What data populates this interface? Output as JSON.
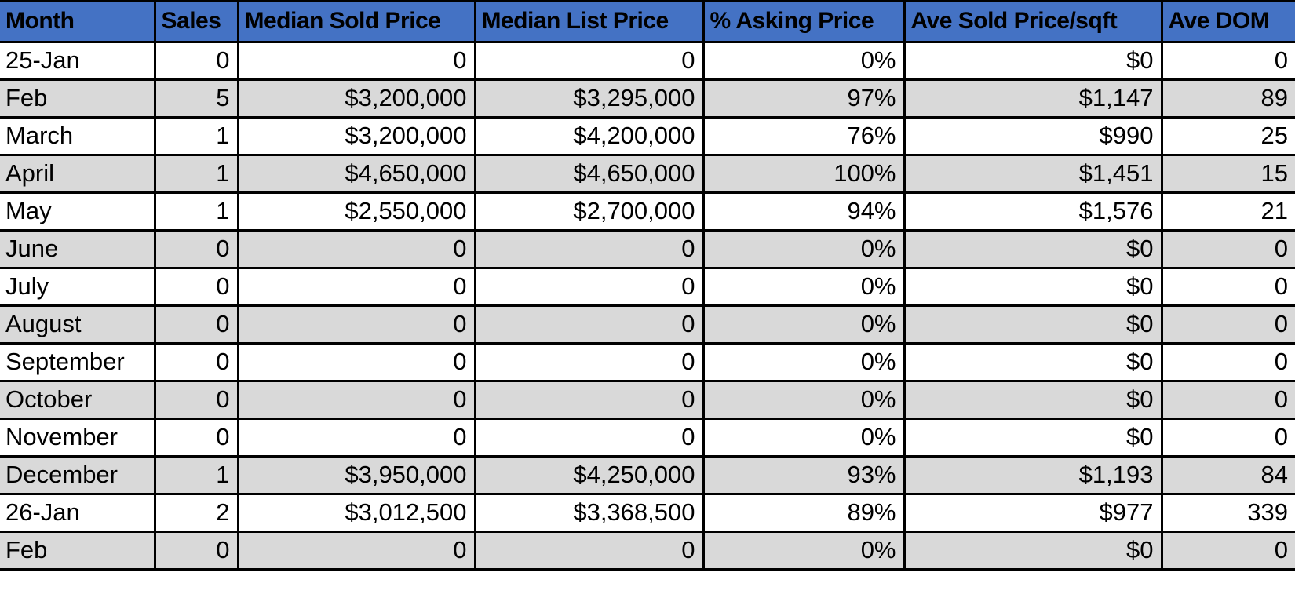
{
  "colors": {
    "header_bg": "#4472C4",
    "header_text": "#000000",
    "row_bg": "#FFFFFF",
    "row_alt_bg": "#D9D9D9",
    "border": "#000000",
    "cell_text": "#000000"
  },
  "table": {
    "headers": [
      "Month",
      "Sales",
      "Median Sold Price",
      "Median List Price",
      "% Asking Price",
      "Ave Sold Price/sqft",
      "Ave DOM"
    ],
    "rows": [
      {
        "cells": [
          "25-Jan",
          "0",
          "0",
          "0",
          "0%",
          "$0",
          "0"
        ]
      },
      {
        "cells": [
          "Feb",
          "5",
          "$3,200,000",
          "$3,295,000",
          "97%",
          "$1,147",
          "89"
        ]
      },
      {
        "cells": [
          "March",
          "1",
          "$3,200,000",
          "$4,200,000",
          "76%",
          "$990",
          "25"
        ]
      },
      {
        "cells": [
          "April",
          "1",
          "$4,650,000",
          "$4,650,000",
          "100%",
          "$1,451",
          "15"
        ]
      },
      {
        "cells": [
          "May",
          "1",
          "$2,550,000",
          "$2,700,000",
          "94%",
          "$1,576",
          "21"
        ]
      },
      {
        "cells": [
          "June",
          "0",
          "0",
          "0",
          "0%",
          "$0",
          "0"
        ]
      },
      {
        "cells": [
          "July",
          "0",
          "0",
          "0",
          "0%",
          "$0",
          "0"
        ]
      },
      {
        "cells": [
          "August",
          "0",
          "0",
          "0",
          "0%",
          "$0",
          "0"
        ]
      },
      {
        "cells": [
          "September",
          "0",
          "0",
          "0",
          "0%",
          "$0",
          "0"
        ]
      },
      {
        "cells": [
          "October",
          "0",
          "0",
          "0",
          "0%",
          "$0",
          "0"
        ]
      },
      {
        "cells": [
          "November",
          "0",
          "0",
          "0",
          "0%",
          "$0",
          "0"
        ]
      },
      {
        "cells": [
          "December",
          "1",
          "$3,950,000",
          "$4,250,000",
          "93%",
          "$1,193",
          "84"
        ]
      },
      {
        "cells": [
          "26-Jan",
          "2",
          "$3,012,500",
          "$3,368,500",
          "89%",
          "$977",
          "339"
        ]
      },
      {
        "cells": [
          "Feb",
          "0",
          "0",
          "0",
          "0%",
          "$0",
          "0"
        ]
      }
    ]
  },
  "chart_data": {
    "type": "table",
    "columns": [
      "Month",
      "Sales",
      "Median Sold Price",
      "Median List Price",
      "% Asking Price",
      "Ave Sold Price/sqft",
      "Ave DOM"
    ],
    "rows": [
      [
        "25-Jan",
        0,
        0,
        0,
        "0%",
        "$0",
        0
      ],
      [
        "Feb",
        5,
        "$3,200,000",
        "$3,295,000",
        "97%",
        "$1,147",
        89
      ],
      [
        "March",
        1,
        "$3,200,000",
        "$4,200,000",
        "76%",
        "$990",
        25
      ],
      [
        "April",
        1,
        "$4,650,000",
        "$4,650,000",
        "100%",
        "$1,451",
        15
      ],
      [
        "May",
        1,
        "$2,550,000",
        "$2,700,000",
        "94%",
        "$1,576",
        21
      ],
      [
        "June",
        0,
        0,
        0,
        "0%",
        "$0",
        0
      ],
      [
        "July",
        0,
        0,
        0,
        "0%",
        "$0",
        0
      ],
      [
        "August",
        0,
        0,
        0,
        "0%",
        "$0",
        0
      ],
      [
        "September",
        0,
        0,
        0,
        "0%",
        "$0",
        0
      ],
      [
        "October",
        0,
        0,
        0,
        "0%",
        "$0",
        0
      ],
      [
        "November",
        0,
        0,
        0,
        "0%",
        "$0",
        0
      ],
      [
        "December",
        1,
        "$3,950,000",
        "$4,250,000",
        "93%",
        "$1,193",
        84
      ],
      [
        "26-Jan",
        2,
        "$3,012,500",
        "$3,368,500",
        "89%",
        "$977",
        339
      ],
      [
        "Feb",
        0,
        0,
        0,
        "0%",
        "$0",
        0
      ]
    ],
    "layout": {
      "header_fill": "#4472C4",
      "banded_rows": true,
      "band_fill": "#D9D9D9",
      "gridlines": true
    }
  }
}
